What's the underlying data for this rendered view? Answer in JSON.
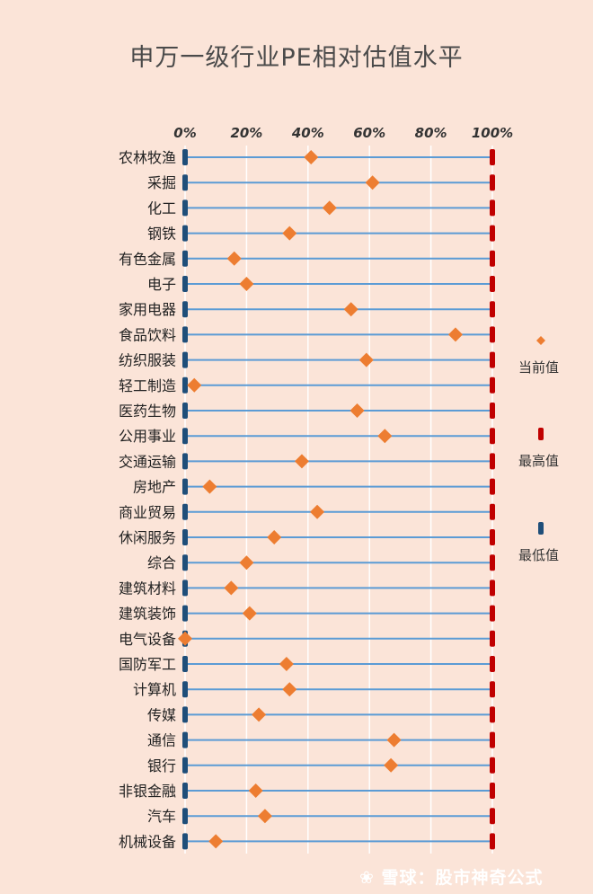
{
  "chart_data": {
    "type": "range-dot",
    "title": "申万一级行业PE相对估值水平",
    "xlim": [
      0,
      100
    ],
    "tick_labels": [
      "0%",
      "20%",
      "40%",
      "60%",
      "80%",
      "100%"
    ],
    "tick_values": [
      0,
      20,
      40,
      60,
      80,
      100
    ],
    "categories": [
      "农林牧渔",
      "采掘",
      "化工",
      "钢铁",
      "有色金属",
      "电子",
      "家用电器",
      "食品饮料",
      "纺织服装",
      "轻工制造",
      "医药生物",
      "公用事业",
      "交通运输",
      "房地产",
      "商业贸易",
      "休闲服务",
      "综合",
      "建筑材料",
      "建筑装饰",
      "电气设备",
      "国防军工",
      "计算机",
      "传媒",
      "通信",
      "银行",
      "非银金融",
      "汽车",
      "机械设备"
    ],
    "series": [
      {
        "name": "当前值",
        "values": [
          41,
          61,
          47,
          34,
          16,
          20,
          54,
          88,
          59,
          3,
          56,
          65,
          38,
          8,
          43,
          29,
          20,
          15,
          21,
          0,
          33,
          34,
          24,
          68,
          67,
          23,
          26,
          10
        ]
      },
      {
        "name": "最高值",
        "values": [
          100,
          100,
          100,
          100,
          100,
          100,
          100,
          100,
          100,
          100,
          100,
          100,
          100,
          100,
          100,
          100,
          100,
          100,
          100,
          100,
          100,
          100,
          100,
          100,
          100,
          100,
          100,
          100
        ]
      },
      {
        "name": "最低值",
        "values": [
          0,
          0,
          0,
          0,
          0,
          0,
          0,
          0,
          0,
          0,
          0,
          0,
          0,
          0,
          0,
          0,
          0,
          0,
          0,
          0,
          0,
          0,
          0,
          0,
          0,
          0,
          0,
          0
        ]
      }
    ],
    "legend": [
      "当前值",
      "最高值",
      "最低值"
    ],
    "colors": {
      "current": "#ed7d31",
      "max": "#c00000",
      "min": "#1f4e79",
      "range_line": "#5b9bd5",
      "grid": "#ffffff"
    }
  },
  "watermark": "雪球：股市神奇公式"
}
